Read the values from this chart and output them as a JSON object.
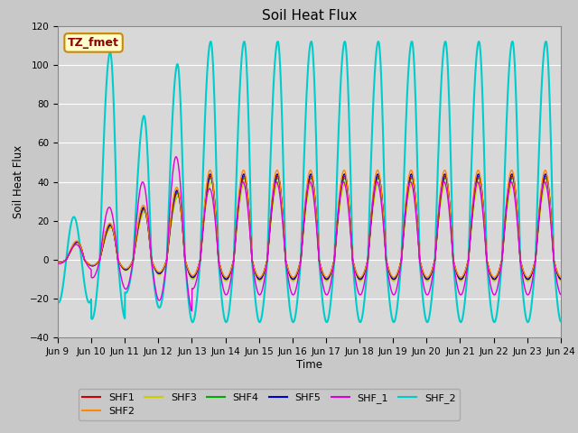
{
  "title": "Soil Heat Flux",
  "ylabel": "Soil Heat Flux",
  "xlabel": "Time",
  "ylim": [
    -40,
    120
  ],
  "xlim": [
    0,
    360
  ],
  "fig_facecolor": "#c8c8c8",
  "ax_facecolor": "#d8d8d8",
  "annotation_text": "TZ_fmet",
  "annotation_bg": "#ffffcc",
  "annotation_border": "#cc8800",
  "xtick_labels": [
    "Jun 9",
    "Jun 10",
    "Jun 11",
    "Jun 12",
    "Jun 13",
    "Jun 14",
    "Jun 15",
    "Jun 16",
    "Jun 17",
    "Jun 18",
    "Jun 19",
    "Jun 20",
    "Jun 21",
    "Jun 22",
    "Jun 23",
    "Jun 24"
  ],
  "series": [
    {
      "name": "SHF1",
      "color": "#cc0000",
      "lw": 1.0,
      "zorder": 4
    },
    {
      "name": "SHF2",
      "color": "#ff8800",
      "lw": 1.0,
      "zorder": 5
    },
    {
      "name": "SHF3",
      "color": "#cccc00",
      "lw": 1.0,
      "zorder": 3
    },
    {
      "name": "SHF4",
      "color": "#00aa00",
      "lw": 1.0,
      "zorder": 3
    },
    {
      "name": "SHF5",
      "color": "#0000cc",
      "lw": 1.0,
      "zorder": 4
    },
    {
      "name": "SHF_1",
      "color": "#dd00dd",
      "lw": 1.0,
      "zorder": 5
    },
    {
      "name": "SHF_2",
      "color": "#00cccc",
      "lw": 1.5,
      "zorder": 2
    }
  ]
}
